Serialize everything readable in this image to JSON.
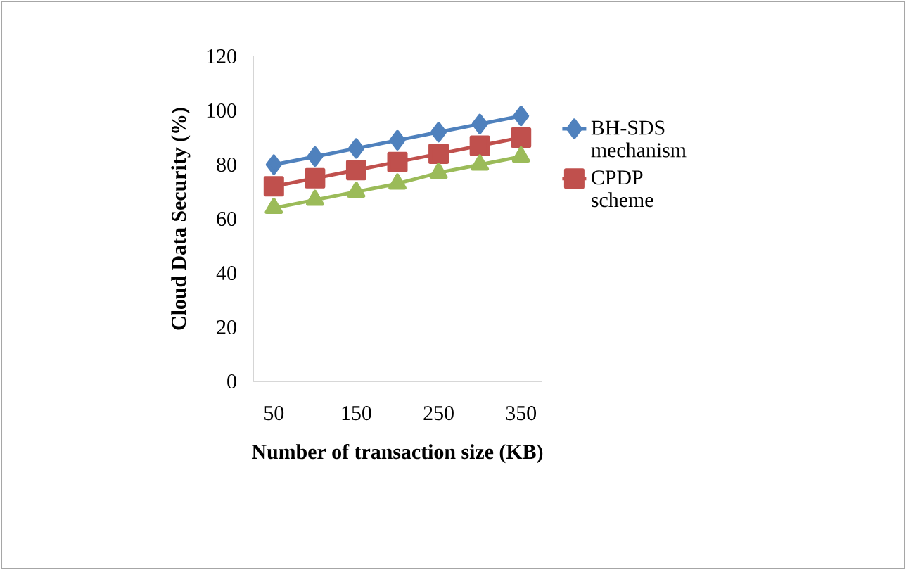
{
  "chart_data": {
    "type": "line",
    "xlabel": "Number of transaction size (KB)",
    "ylabel": "Cloud Data Security (%)",
    "categories": [
      "50",
      null,
      "150",
      null,
      "250",
      null,
      "350"
    ],
    "ylim": [
      0,
      120
    ],
    "yticks": [
      0,
      20,
      40,
      60,
      80,
      100,
      120
    ],
    "legend": "right",
    "grid": false,
    "series": [
      {
        "name": "BH-SDS mechanism",
        "color": "#4f81bd",
        "marker": "diamond",
        "values": [
          80,
          83,
          86,
          89,
          92,
          95,
          98
        ]
      },
      {
        "name": "CPDP scheme",
        "color": "#c0504d",
        "marker": "square",
        "values": [
          72,
          75,
          78,
          81,
          84,
          87,
          90
        ]
      },
      {
        "color": "#9bbb59",
        "marker": "triangle",
        "values": [
          64,
          67,
          70,
          73,
          77,
          80,
          83
        ]
      }
    ]
  }
}
